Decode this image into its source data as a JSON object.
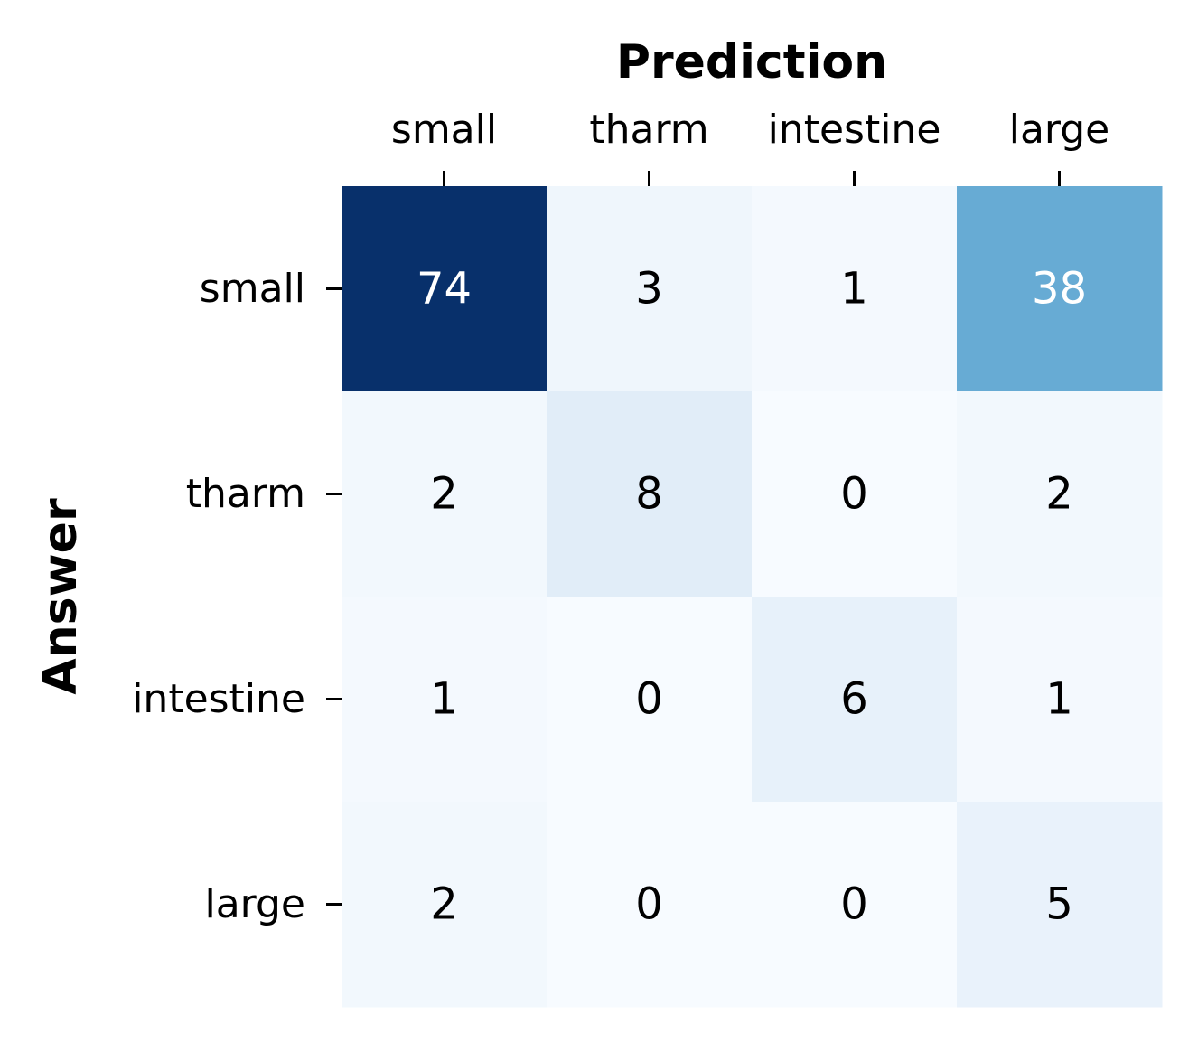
{
  "chart_data": {
    "type": "heatmap",
    "title": "",
    "xlabel": "Prediction",
    "ylabel": "Answer",
    "x_categories": [
      "small",
      "tharm",
      "intestine",
      "large"
    ],
    "y_categories": [
      "small",
      "tharm",
      "intestine",
      "large"
    ],
    "values": [
      [
        74,
        3,
        1,
        38
      ],
      [
        2,
        8,
        0,
        2
      ],
      [
        1,
        0,
        6,
        1
      ],
      [
        2,
        0,
        0,
        5
      ]
    ],
    "colormap": "Blues",
    "color_range": [
      0,
      74
    ],
    "colorbar": false,
    "x_axis_position": "top",
    "grid": false
  }
}
